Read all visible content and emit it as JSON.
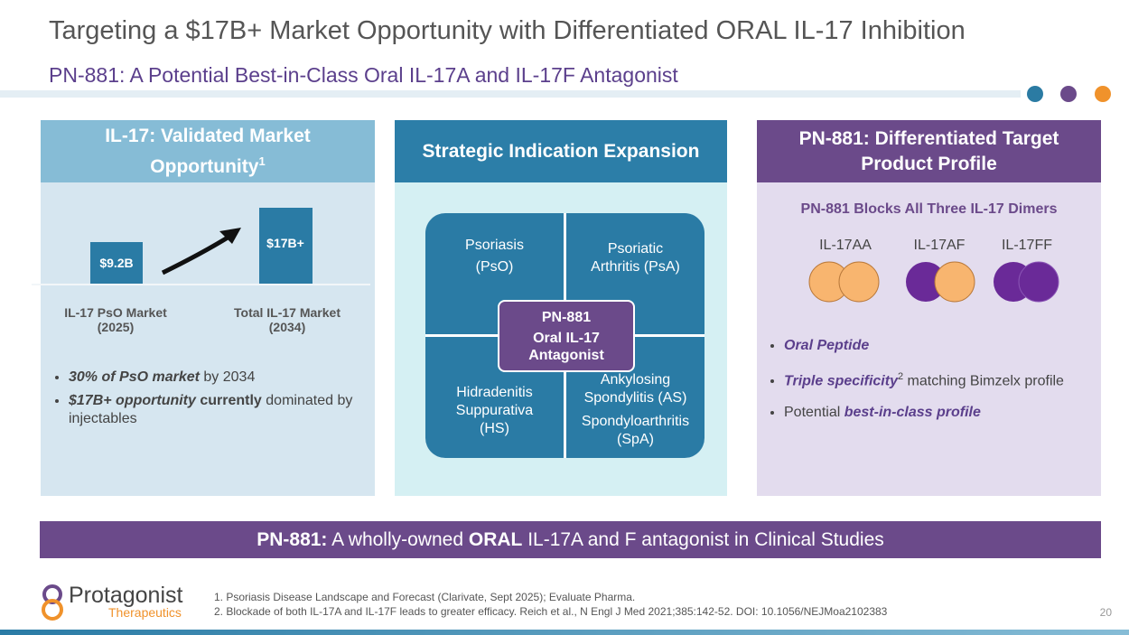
{
  "header": {
    "title": "Targeting a $17B+ Market Opportunity with Differentiated ORAL IL-17 Inhibition",
    "subtitle": "PN-881: A Potential Best-in-Class Oral IL-17A and IL-17F Antagonist"
  },
  "market": {
    "heading": "IL-17: Validated Market Opportunity",
    "heading_note": "1",
    "bars": [
      {
        "label": "$9.2B",
        "caption": [
          "IL-17 PsO Market",
          "(2025)"
        ]
      },
      {
        "label": "$17B+",
        "caption": [
          "Total IL-17 Market",
          "(2034)"
        ]
      }
    ],
    "bullets": [
      [
        "30% of PsO market",
        " by 2034"
      ],
      [
        "$17B+ opportunity",
        " currently",
        " dominated by injectables"
      ]
    ]
  },
  "expansion": {
    "heading": "Strategic Indication Expansion",
    "quadrants": [
      [
        "Psoriasis",
        "(PsO)"
      ],
      [
        "Psoriatic",
        "Arthritis (PsA)"
      ],
      [
        "Hidradenitis",
        "Suppurativa",
        "(HS)"
      ],
      [
        "Ankylosing",
        "Spondylitis (AS)",
        "Spondyloarthritis",
        "(SpA)"
      ]
    ],
    "center": [
      "PN-881",
      "Oral IL-17",
      "Antagonist"
    ]
  },
  "profile": {
    "heading": "PN-881: Differentiated Target Product Profile",
    "subheading": "PN-881 Blocks All Three IL-17 Dimers",
    "dimers": [
      "IL-17AA",
      "IL-17AF",
      "IL-17FF"
    ],
    "bullets": [
      [
        "Oral Peptide"
      ],
      [
        "Triple specificity",
        "2",
        " matching Bimzelx profile"
      ],
      [
        "Potential ",
        "best-in-class profile"
      ]
    ]
  },
  "banner": [
    "PN-881:",
    " A wholly-owned ",
    "ORAL",
    " IL-17A and F antagonist in Clinical Studies"
  ],
  "footer": {
    "logo": [
      "Protagonist",
      "Therapeutics"
    ],
    "footnotes": [
      "1. Psoriasis Disease Landscape and Forecast (Clarivate, Sept 2025); Evaluate Pharma.",
      "2. Blockade of both IL-17A and IL-17F leads to greater efficacy. Reich et al., N Engl J Med 2021;385:142-52. DOI: 10.1056/NEJMoa2102383"
    ],
    "page": "20"
  }
}
